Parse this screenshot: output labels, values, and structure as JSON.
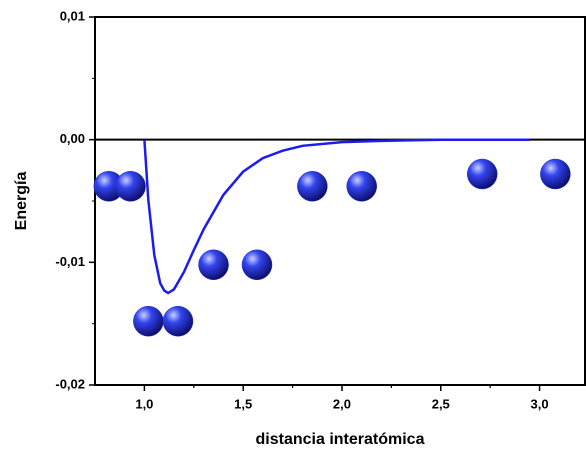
{
  "chart_data": {
    "type": "line",
    "x_label": "distancia interatómica",
    "y_label": "Energía",
    "xlim": [
      0.75,
      3.23
    ],
    "ylim": [
      -0.02,
      0.01
    ],
    "xticks": [
      {
        "value": 1.0,
        "label": "1,0"
      },
      {
        "value": 1.5,
        "label": "1,5"
      },
      {
        "value": 2.0,
        "label": "2,0"
      },
      {
        "value": 2.5,
        "label": "2,5"
      },
      {
        "value": 3.0,
        "label": "3,0"
      }
    ],
    "yticks": [
      {
        "value": -0.02,
        "label": "-0,02"
      },
      {
        "value": -0.01,
        "label": "-0,01"
      },
      {
        "value": 0,
        "label": "0,00"
      },
      {
        "value": 0.01,
        "label": "0,01"
      }
    ],
    "zero_line": true,
    "series": [
      {
        "color": "#1c1cf0",
        "x": [
          1.0,
          1.02,
          1.05,
          1.08,
          1.1,
          1.12,
          1.15,
          1.2,
          1.25,
          1.3,
          1.4,
          1.5,
          1.6,
          1.7,
          1.8,
          2.0,
          2.2,
          2.5,
          2.95
        ],
        "values": [
          0,
          -0.0049,
          -0.0094,
          -0.0117,
          -0.0123,
          -0.0125,
          -0.0122,
          -0.0108,
          -0.009,
          -0.0073,
          -0.0045,
          -0.0026,
          -0.0015,
          -0.0009,
          -0.0005,
          -0.0002,
          -0.0001,
          0,
          0
        ]
      }
    ],
    "atoms": {
      "color": "#1f2fd8",
      "x": [
        0.82,
        0.93,
        1.02,
        1.17,
        1.35,
        1.57,
        1.85,
        2.1,
        2.71,
        3.08
      ],
      "values": [
        -0.0038,
        -0.0038,
        -0.0148,
        -0.0148,
        -0.0102,
        -0.0102,
        -0.0038,
        -0.0038,
        -0.0028,
        -0.0028
      ]
    }
  }
}
